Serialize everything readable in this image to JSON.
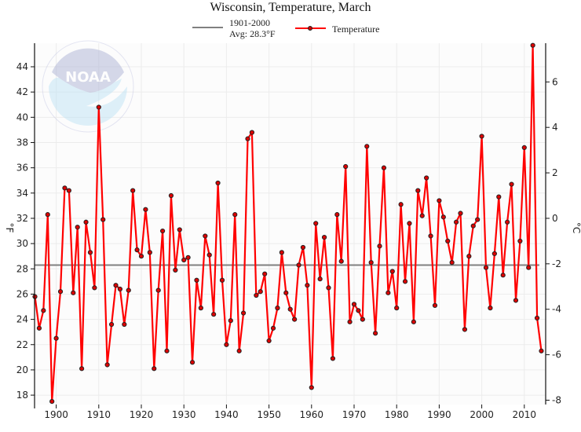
{
  "chart_data": {
    "type": "line",
    "title": "Wisconsin, Temperature, March",
    "ylabel": "°F",
    "ylabel_right": "°C",
    "xlim": [
      1895,
      2015
    ],
    "ylim": [
      17.4,
      45.9
    ],
    "ylim_right_celsius": [
      -8.1,
      7.7
    ],
    "grid": true,
    "legend_position": "top-center",
    "x_ticks": [
      "1900",
      "1910",
      "1920",
      "1930",
      "1940",
      "1950",
      "1960",
      "1970",
      "1980",
      "1990",
      "2000",
      "2010"
    ],
    "y_ticks": [
      "18",
      "20",
      "22",
      "24",
      "26",
      "28",
      "30",
      "32",
      "34",
      "36",
      "38",
      "40",
      "42",
      "44"
    ],
    "y_ticks_right": [
      "-8",
      "-6",
      "-4",
      "-2",
      "0",
      "2",
      "4",
      "6"
    ],
    "reference_line": {
      "label_line1": "1901-2000",
      "label_line2": "Avg: 28.3°F",
      "value": 28.3,
      "color": "#808080"
    },
    "series": [
      {
        "name": "Temperature",
        "color": "#ff0000",
        "x_start": 1895,
        "values": [
          25.8,
          23.3,
          24.7,
          32.3,
          17.5,
          22.5,
          26.2,
          34.4,
          34.2,
          26.1,
          31.3,
          20.1,
          31.7,
          29.3,
          26.5,
          40.8,
          31.9,
          20.4,
          23.6,
          26.7,
          26.4,
          23.6,
          26.3,
          34.2,
          29.5,
          29.0,
          32.7,
          29.3,
          20.1,
          26.3,
          31.0,
          21.5,
          33.8,
          27.9,
          31.1,
          28.7,
          28.9,
          20.6,
          27.1,
          24.9,
          30.6,
          29.1,
          24.4,
          34.8,
          27.1,
          22.0,
          23.9,
          32.3,
          21.5,
          24.5,
          38.3,
          38.8,
          25.9,
          26.2,
          27.6,
          22.3,
          23.3,
          24.9,
          29.3,
          26.1,
          24.8,
          24.0,
          28.3,
          29.7,
          26.7,
          18.6,
          31.6,
          27.2,
          30.5,
          26.5,
          20.9,
          32.3,
          28.6,
          36.1,
          23.8,
          25.2,
          24.7,
          24.0,
          37.7,
          28.5,
          22.9,
          29.8,
          36.0,
          26.1,
          27.8,
          24.9,
          33.1,
          27.0,
          31.6,
          23.8,
          34.2,
          32.2,
          35.2,
          30.6,
          25.1,
          33.4,
          32.1,
          30.2,
          28.5,
          31.7,
          32.4,
          23.2,
          29.0,
          31.4,
          31.9,
          38.5,
          28.1,
          24.9,
          29.2,
          33.7,
          27.5,
          31.7,
          34.7,
          25.5,
          30.2,
          37.6,
          28.1,
          45.7,
          24.1,
          21.5
        ]
      }
    ]
  },
  "logo": {
    "text": "NOAA",
    "ring_text": "NATIONAL OCEANIC AND ATMOSPHERIC ADMINISTRATION · U.S. DEPARTMENT OF COMMERCE"
  }
}
